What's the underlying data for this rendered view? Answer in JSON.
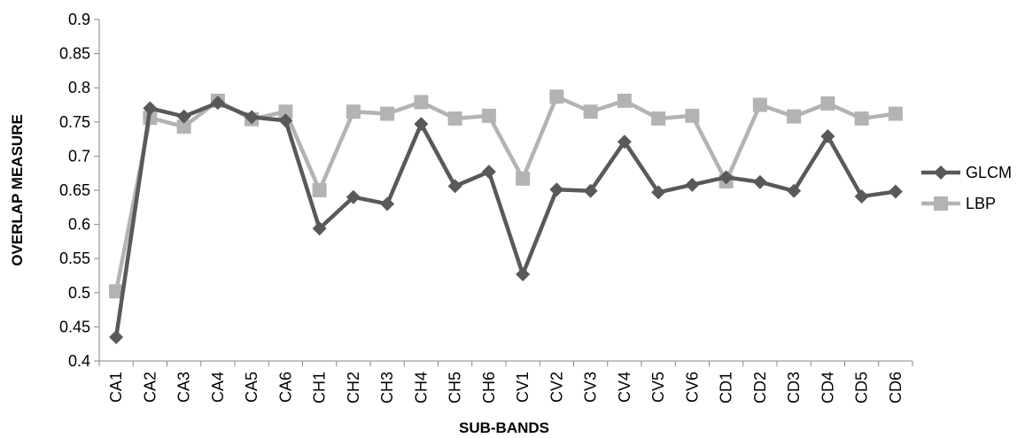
{
  "chart_data": {
    "type": "line",
    "xlabel": "SUB-BANDS",
    "ylabel": "OVERLAP MEASURE",
    "ylim": [
      0.4,
      0.9
    ],
    "yticks": [
      "0.4",
      "0.45",
      "0.5",
      "0.55",
      "0.6",
      "0.65",
      "0.7",
      "0.75",
      "0.8",
      "0.85",
      "0.9"
    ],
    "grid": false,
    "legend_position": "right",
    "categories": [
      "CA1",
      "CA2",
      "CA3",
      "CA4",
      "CA5",
      "CA6",
      "CH1",
      "CH2",
      "CH3",
      "CH4",
      "CH5",
      "CH6",
      "CV1",
      "CV2",
      "CV3",
      "CV4",
      "CV5",
      "CV6",
      "CD1",
      "CD2",
      "CD3",
      "CD4",
      "CD5",
      "CD6"
    ],
    "series": [
      {
        "name": "GLCM",
        "color": "#595959",
        "marker": "diamond",
        "values": [
          0.435,
          0.77,
          0.758,
          0.778,
          0.757,
          0.752,
          0.594,
          0.64,
          0.63,
          0.747,
          0.656,
          0.677,
          0.527,
          0.651,
          0.649,
          0.721,
          0.647,
          0.658,
          0.669,
          0.662,
          0.649,
          0.729,
          0.641,
          0.648
        ]
      },
      {
        "name": "LBP",
        "color": "#b3b3b3",
        "marker": "square",
        "values": [
          0.502,
          0.756,
          0.743,
          0.781,
          0.754,
          0.765,
          0.65,
          0.765,
          0.762,
          0.779,
          0.755,
          0.759,
          0.667,
          0.787,
          0.765,
          0.781,
          0.755,
          0.759,
          0.663,
          0.775,
          0.758,
          0.777,
          0.755,
          0.762
        ]
      }
    ]
  }
}
